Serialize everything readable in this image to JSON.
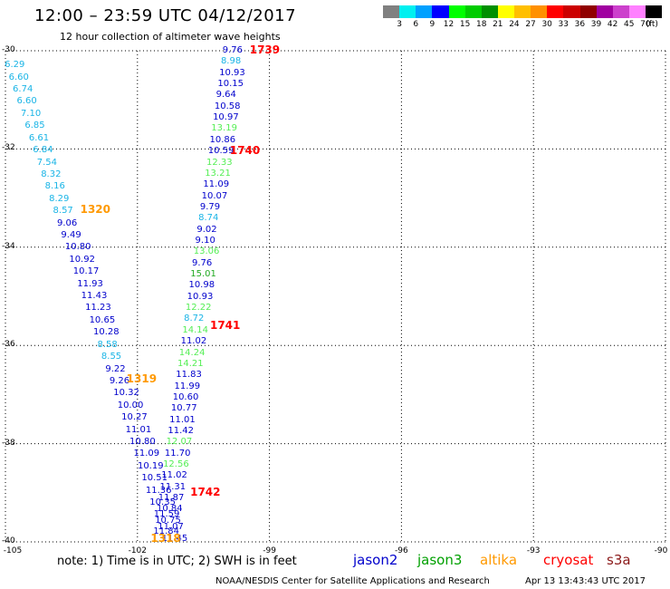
{
  "header": {
    "title": "12:00 – 23:59 UTC 04/12/2017",
    "subtitle": "12 hour collection of altimeter wave heights"
  },
  "legend": {
    "colors": [
      "#808080",
      "#00f0f0",
      "#00a0ff",
      "#0000ff",
      "#00ff00",
      "#00cc00",
      "#009000",
      "#ffff00",
      "#ffbf00",
      "#ff9000",
      "#ff0000",
      "#cc0000",
      "#900000",
      "#a000a0",
      "#cc40cc",
      "#ff80ff",
      "#000000"
    ],
    "labels": [
      "3",
      "6",
      "9",
      "12",
      "15",
      "18",
      "21",
      "24",
      "27",
      "30",
      "33",
      "36",
      "39",
      "42",
      "45",
      "70",
      "(ft)"
    ]
  },
  "axes": {
    "x_ticks": [
      "-105",
      "-102",
      "-99",
      "-96",
      "-93",
      "-90"
    ],
    "y_ticks": [
      "-30",
      "-32",
      "-34",
      "-36",
      "-38",
      "-40"
    ]
  },
  "satellites": [
    {
      "name": "jason2",
      "color": "#0000cc"
    },
    {
      "name": "jason3",
      "color": "#00a000"
    },
    {
      "name": "altika",
      "color": "#ff9900"
    },
    {
      "name": "cryosat",
      "color": "#ff0000"
    },
    {
      "name": "s3a",
      "color": "#8b1a1a"
    }
  ],
  "footer": {
    "note": "note:  1) Time is in UTC;  2) SWH is in feet",
    "credit": "NOAA/NESDIS Center for Satellite Applications and Research",
    "timestamp": "Apr 13 13:43:43 UTC 2017"
  },
  "pass_labels": [
    {
      "text": "1739",
      "color": "#ff0000",
      "lon": -99.45,
      "lat": -30.0
    },
    {
      "text": "1740",
      "color": "#ff0000",
      "lon": -99.9,
      "lat": -32.05
    },
    {
      "text": "1741",
      "color": "#ff0000",
      "lon": -100.35,
      "lat": -35.6
    },
    {
      "text": "1742",
      "color": "#ff0000",
      "lon": -100.8,
      "lat": -39.0
    },
    {
      "text": "1320",
      "color": "#ff9900",
      "lon": -103.3,
      "lat": -33.25
    },
    {
      "text": "1319",
      "color": "#ff9900",
      "lon": -102.25,
      "lat": -36.7
    },
    {
      "text": "1318",
      "color": "#ff9900",
      "lon": -101.7,
      "lat": -39.95
    }
  ],
  "tracks": [
    {
      "satellite": "jason2",
      "lon_start": -104.75,
      "lon_end": -101.18,
      "lat_start": -30.3,
      "lat_end": -39.95,
      "values": [
        "6.29",
        "6.60",
        "6.74",
        "6.60",
        "7.10",
        "6.85",
        "6.61",
        "6.84",
        "7.54",
        "8.32",
        "8.16",
        "8.29",
        "8.57",
        "9.06",
        "9.49",
        "10.80",
        "10.92",
        "10.17",
        "11.93",
        "11.43",
        "11.23",
        "10.65",
        "10.28",
        "8.58",
        "8.55",
        "9.22",
        "9.26",
        "10.32",
        "10.00",
        "10.27",
        "11.01",
        "10.80",
        "11.09",
        "10.19",
        "10.51",
        "11.36",
        "10.35",
        "11.59",
        "11.07",
        "11.45"
      ],
      "colors": [
        "c",
        "c",
        "c",
        "c",
        "c",
        "c",
        "c",
        "c",
        "c",
        "c",
        "c",
        "c",
        "c",
        "b",
        "b",
        "b",
        "b",
        "b",
        "b",
        "b",
        "b",
        "b",
        "b",
        "c",
        "c",
        "b",
        "b",
        "b",
        "b",
        "b",
        "b",
        "b",
        "b",
        "b",
        "b",
        "b",
        "b",
        "b",
        "b",
        "b"
      ]
    },
    {
      "satellite": "jason3",
      "lon_start": -99.8,
      "lon_end": -101.37,
      "lat_start": -30.0,
      "lat_end": -39.8,
      "values": [
        "9.76",
        "8.98",
        "10.93",
        "10.15",
        "9.64",
        "10.58",
        "10.97",
        "13.19",
        "10.86",
        "10.59",
        "12.33",
        "13.21",
        "11.09",
        "10.07",
        "9.79",
        "8.74",
        "9.02",
        "9.10",
        "13.06",
        "9.76",
        "15.01",
        "10.98",
        "10.93",
        "12.22",
        "8.72",
        "14.14",
        "11.02",
        "14.24",
        "14.21",
        "11.83",
        "11.99",
        "10.60",
        "10.77",
        "11.01",
        "11.42",
        "12.07",
        "11.70",
        "12.56",
        "11.02",
        "11.31",
        "11.87",
        "10.84",
        "10.75",
        "11.84"
      ],
      "colors": [
        "b",
        "c",
        "b",
        "b",
        "b",
        "b",
        "b",
        "g",
        "b",
        "b",
        "g",
        "g",
        "b",
        "b",
        "b",
        "c",
        "b",
        "b",
        "g",
        "b",
        "d",
        "b",
        "b",
        "g",
        "c",
        "g",
        "b",
        "g",
        "g",
        "b",
        "b",
        "b",
        "b",
        "b",
        "b",
        "g",
        "b",
        "g",
        "b",
        "b",
        "b",
        "b",
        "b",
        "b"
      ]
    }
  ],
  "value_colors": {
    "c": "#19b4e6",
    "b": "#0000cc",
    "g": "#55ee55",
    "d": "#22aa22"
  }
}
